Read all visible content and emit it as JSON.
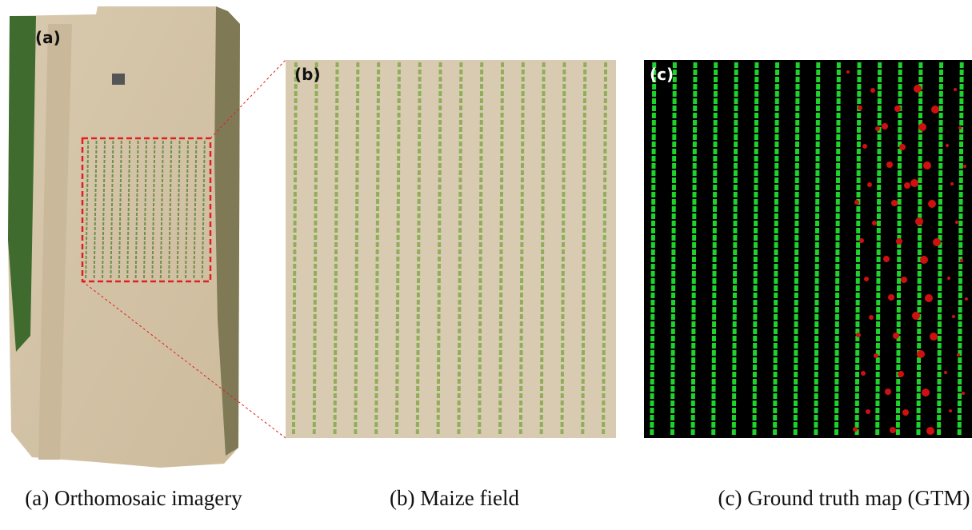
{
  "panels": [
    {
      "tag": "(a)",
      "caption": "(a) Orthomosaic imagery"
    },
    {
      "tag": "(b)",
      "caption": "(b) Maize field"
    },
    {
      "tag": "(c)",
      "caption": "(c) Ground truth map (GTM)"
    }
  ]
}
